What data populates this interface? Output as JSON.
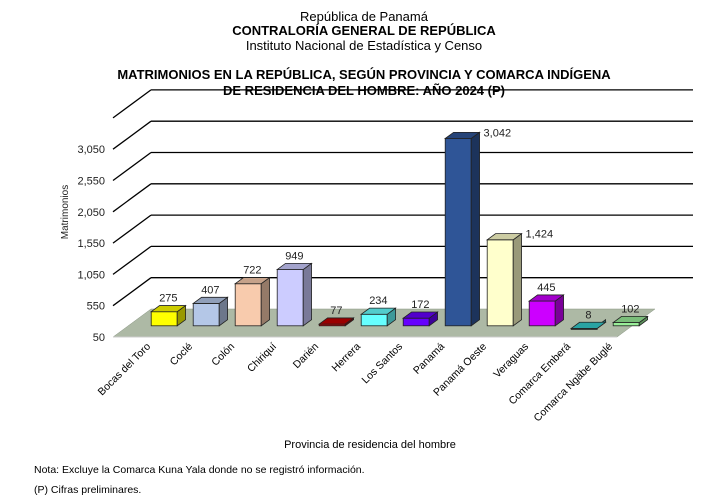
{
  "header": {
    "line1": "República de Panamá",
    "line2": "CONTRALORÍA GENERAL DE REPÚBLICA",
    "line3": "Instituto Nacional de Estadística y Censo"
  },
  "chart_data": {
    "type": "bar",
    "title": "MATRIMONIOS EN LA REPÚBLICA, SEGÚN PROVINCIA Y COMARCA INDÍGENA",
    "subtitle": "DE RESIDENCIA DEL HOMBRE: AÑO 2024 (P)",
    "xlabel": "Provincia de residencia del hombre",
    "ylabel": "Matrimonios",
    "ylim": [
      50,
      3550
    ],
    "yticks": [
      50,
      550,
      1050,
      1550,
      2050,
      2550,
      3050
    ],
    "ytick_labels": [
      "50",
      "550",
      "1,050",
      "1,550",
      "2,050",
      "2,550",
      "3,050"
    ],
    "categories": [
      "Bocas del Toro",
      "Coclé",
      "Colón",
      "Chiriquí",
      "Darién",
      "Herrera",
      "Los Santos",
      "Panamá",
      "Panamá Oeste",
      "Veraguas",
      "Comarca Emberá",
      "Comarca Ngäbe Buglé"
    ],
    "values": [
      275,
      407,
      722,
      949,
      77,
      234,
      172,
      3042,
      1424,
      445,
      8,
      102
    ],
    "value_labels": [
      "275",
      "407",
      "722",
      "949",
      "77",
      "234",
      "172",
      "3,042",
      "1,424",
      "445",
      "8",
      "102"
    ],
    "colors": [
      "#ffff00",
      "#b4c7e7",
      "#f8cbad",
      "#ccccff",
      "#c00000",
      "#66ffff",
      "#6600ff",
      "#2f5597",
      "#ffffcc",
      "#cc00ff",
      "#33cccc",
      "#99ee99"
    ],
    "floor_color": "#adb9a5",
    "grid": true
  },
  "notes": [
    "Nota: Excluye la Comarca Kuna Yala donde no se registró información.",
    "(P) Cifras preliminares."
  ]
}
